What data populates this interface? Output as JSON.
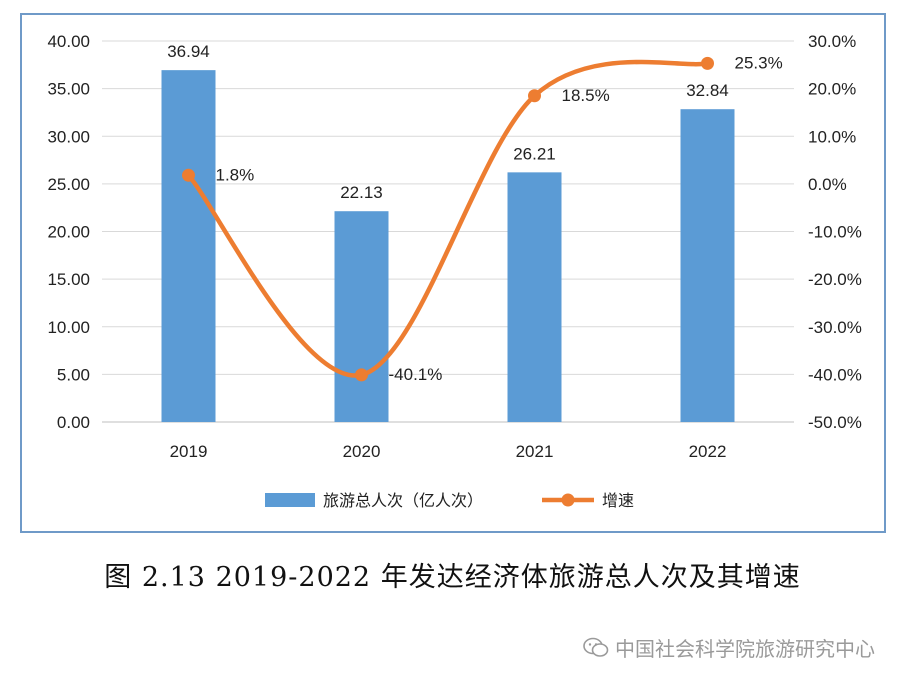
{
  "caption": "图 2.13 2019-2022 年发达经济体旅游总人次及其增速",
  "watermark": "中国社会科学院旅游研究中心",
  "colors": {
    "bar": "#5b9bd5",
    "line": "#ed7d31",
    "frame": "#6f9ac8"
  },
  "chart_data": {
    "type": "bar",
    "categories": [
      "2019",
      "2020",
      "2021",
      "2022"
    ],
    "series": [
      {
        "name": "旅游总人次（亿人次）",
        "kind": "bar",
        "axis": "left",
        "values": [
          36.94,
          22.13,
          26.21,
          32.84
        ],
        "labels": [
          "36.94",
          "22.13",
          "26.21",
          "32.84"
        ]
      },
      {
        "name": "增速",
        "kind": "line",
        "axis": "right",
        "smooth": true,
        "values": [
          1.8,
          -40.1,
          18.5,
          25.3
        ],
        "labels": [
          "1.8%",
          "-40.1%",
          "18.5%",
          "25.3%"
        ]
      }
    ],
    "y_left": {
      "range": [
        0,
        40
      ],
      "ticks": [
        "0.00",
        "5.00",
        "10.00",
        "15.00",
        "20.00",
        "25.00",
        "30.00",
        "35.00",
        "40.00"
      ]
    },
    "y_right": {
      "range": [
        -50,
        30
      ],
      "ticks": [
        "-50.0%",
        "-40.0%",
        "-30.0%",
        "-20.0%",
        "-10.0%",
        "0.0%",
        "10.0%",
        "20.0%",
        "30.0%"
      ]
    },
    "grid": true,
    "legend": "bottom"
  }
}
